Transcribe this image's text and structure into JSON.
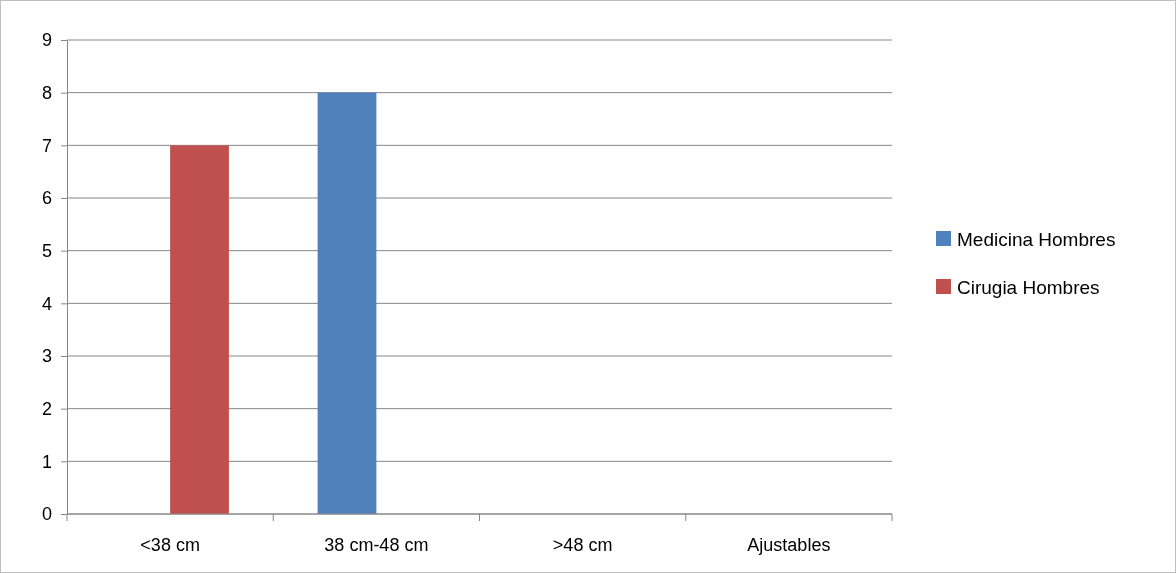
{
  "chart_data": {
    "type": "bar",
    "categories": [
      "<38 cm",
      "38 cm-48 cm",
      ">48 cm",
      "Ajustables"
    ],
    "series": [
      {
        "name": "Medicina Hombres",
        "color": "#4f81bd",
        "values": [
          0,
          8,
          0,
          0
        ]
      },
      {
        "name": "Cirugia Hombres",
        "color": "#c0504d",
        "values": [
          7,
          0,
          0,
          0
        ]
      }
    ],
    "ylim": [
      0,
      9
    ],
    "yticks": [
      0,
      1,
      2,
      3,
      4,
      5,
      6,
      7,
      8,
      9
    ],
    "grid": "y",
    "legend": "right"
  }
}
